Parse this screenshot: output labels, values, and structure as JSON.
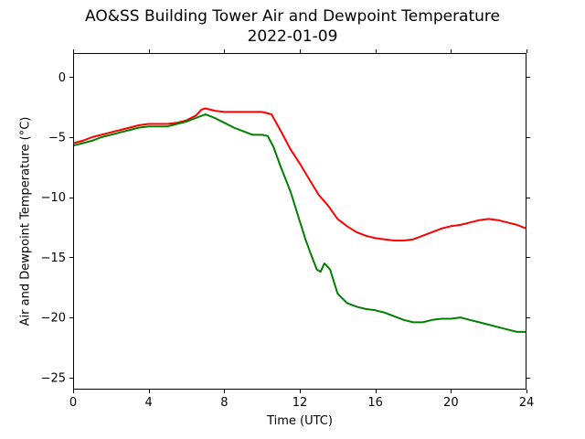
{
  "title": {
    "line1": "AO&SS Building Tower Air and Dewpoint Temperature",
    "line2": "2022-01-09"
  },
  "chart_data": {
    "type": "line",
    "title": "AO&SS Building Tower Air and Dewpoint Temperature\n2022-01-09",
    "xlabel": "Time (UTC)",
    "ylabel": "Air and Dewpoint Temperature (°C)",
    "xlim": [
      0,
      24
    ],
    "ylim": [
      -26,
      2
    ],
    "xticks": [
      0,
      4,
      8,
      12,
      16,
      20,
      24
    ],
    "yticks": [
      -25,
      -20,
      -15,
      -10,
      -5,
      0
    ],
    "grid": false,
    "series": [
      {
        "color": "#ff0000",
        "x": [
          0,
          0.5,
          1,
          1.5,
          2,
          2.5,
          3,
          3.5,
          4,
          4.5,
          5,
          5.5,
          6,
          6.5,
          6.8,
          7,
          7.5,
          8,
          8.5,
          9,
          9.5,
          10,
          10.5,
          11,
          11.5,
          12,
          12.5,
          13,
          13.5,
          14,
          14.5,
          15,
          15.5,
          16,
          16.5,
          17,
          17.5,
          18,
          18.5,
          19,
          19.5,
          20,
          20.5,
          21,
          21.5,
          22,
          22.5,
          23,
          23.5,
          24
        ],
        "y": [
          -5.5,
          -5.3,
          -5.0,
          -4.8,
          -4.6,
          -4.4,
          -4.2,
          -4.0,
          -3.9,
          -3.9,
          -3.9,
          -3.8,
          -3.6,
          -3.2,
          -2.7,
          -2.6,
          -2.8,
          -2.9,
          -2.9,
          -2.9,
          -2.9,
          -2.9,
          -3.1,
          -4.5,
          -6.0,
          -7.2,
          -8.5,
          -9.8,
          -10.7,
          -11.8,
          -12.4,
          -12.9,
          -13.2,
          -13.4,
          -13.5,
          -13.6,
          -13.6,
          -13.5,
          -13.2,
          -12.9,
          -12.6,
          -12.4,
          -12.3,
          -12.1,
          -11.9,
          -11.8,
          -11.9,
          -12.1,
          -12.3,
          -12.6
        ]
      },
      {
        "color": "#008000",
        "x": [
          0,
          0.5,
          1,
          1.5,
          2,
          2.5,
          3,
          3.5,
          4,
          4.5,
          5,
          5.5,
          6,
          6.5,
          7,
          7.5,
          8,
          8.5,
          9,
          9.5,
          10,
          10.3,
          10.6,
          11,
          11.5,
          12,
          12.3,
          12.6,
          12.9,
          13.1,
          13.3,
          13.6,
          14,
          14.5,
          15,
          15.5,
          16,
          16.5,
          17,
          17.5,
          18,
          18.5,
          19,
          19.5,
          20,
          20.5,
          21,
          21.5,
          22,
          22.5,
          23,
          23.5,
          24
        ],
        "y": [
          -5.7,
          -5.5,
          -5.3,
          -5.0,
          -4.8,
          -4.6,
          -4.4,
          -4.2,
          -4.1,
          -4.1,
          -4.1,
          -3.9,
          -3.7,
          -3.4,
          -3.1,
          -3.4,
          -3.8,
          -4.2,
          -4.5,
          -4.8,
          -4.8,
          -4.9,
          -5.8,
          -7.5,
          -9.5,
          -12.0,
          -13.5,
          -14.8,
          -16.0,
          -16.2,
          -15.5,
          -16.0,
          -18.0,
          -18.8,
          -19.1,
          -19.3,
          -19.4,
          -19.6,
          -19.9,
          -20.2,
          -20.4,
          -20.4,
          -20.2,
          -20.1,
          -20.1,
          -20.0,
          -20.2,
          -20.4,
          -20.6,
          -20.8,
          -21.0,
          -21.2,
          -21.2
        ]
      }
    ]
  }
}
